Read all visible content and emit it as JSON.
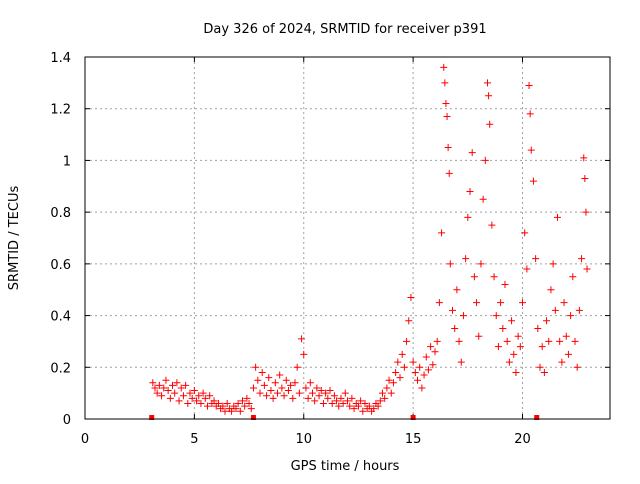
{
  "chart_data": {
    "type": "scatter",
    "title": "Day 326 of 2024, SRMTID for receiver p391",
    "xlabel": "GPS time / hours",
    "ylabel": "SRMTID / TECUs",
    "xlim": [
      0,
      24
    ],
    "ylim": [
      0,
      1.4
    ],
    "xticks": [
      0,
      5,
      10,
      15,
      20
    ],
    "xtick_labels": [
      "0",
      "5",
      "10",
      "15",
      "20"
    ],
    "yticks": [
      0,
      0.2,
      0.4,
      0.6,
      0.8,
      1.0,
      1.2,
      1.4
    ],
    "ytick_labels": [
      "0",
      "0.2",
      "0.4",
      "0.6",
      "0.8",
      "1",
      "1.2",
      "1.4"
    ],
    "grid": true,
    "marker": "+",
    "color": "#ff0000",
    "series": [
      {
        "name": "SRMTID",
        "points": [
          [
            3.1,
            0.14
          ],
          [
            3.2,
            0.12
          ],
          [
            3.3,
            0.1
          ],
          [
            3.4,
            0.13
          ],
          [
            3.5,
            0.09
          ],
          [
            3.6,
            0.12
          ],
          [
            3.7,
            0.15
          ],
          [
            3.8,
            0.11
          ],
          [
            3.9,
            0.08
          ],
          [
            4.0,
            0.13
          ],
          [
            4.1,
            0.1
          ],
          [
            4.2,
            0.14
          ],
          [
            4.3,
            0.07
          ],
          [
            4.4,
            0.12
          ],
          [
            4.5,
            0.09
          ],
          [
            4.6,
            0.13
          ],
          [
            4.7,
            0.06
          ],
          [
            4.8,
            0.1
          ],
          [
            4.9,
            0.08
          ],
          [
            5.0,
            0.11
          ],
          [
            5.1,
            0.07
          ],
          [
            5.2,
            0.09
          ],
          [
            5.3,
            0.06
          ],
          [
            5.4,
            0.1
          ],
          [
            5.5,
            0.08
          ],
          [
            5.6,
            0.05
          ],
          [
            5.7,
            0.09
          ],
          [
            5.8,
            0.06
          ],
          [
            5.9,
            0.07
          ],
          [
            6.0,
            0.05
          ],
          [
            6.1,
            0.06
          ],
          [
            6.2,
            0.04
          ],
          [
            6.3,
            0.05
          ],
          [
            6.4,
            0.03
          ],
          [
            6.5,
            0.06
          ],
          [
            6.6,
            0.04
          ],
          [
            6.7,
            0.03
          ],
          [
            6.8,
            0.05
          ],
          [
            6.9,
            0.04
          ],
          [
            7.0,
            0.06
          ],
          [
            7.1,
            0.03
          ],
          [
            7.2,
            0.07
          ],
          [
            7.3,
            0.05
          ],
          [
            7.4,
            0.08
          ],
          [
            7.5,
            0.06
          ],
          [
            7.6,
            0.04
          ],
          [
            7.7,
            0.12
          ],
          [
            7.8,
            0.2
          ],
          [
            7.9,
            0.15
          ],
          [
            8.0,
            0.1
          ],
          [
            8.1,
            0.18
          ],
          [
            8.2,
            0.13
          ],
          [
            8.3,
            0.09
          ],
          [
            8.4,
            0.16
          ],
          [
            8.5,
            0.11
          ],
          [
            8.6,
            0.08
          ],
          [
            8.7,
            0.14
          ],
          [
            8.8,
            0.1
          ],
          [
            8.9,
            0.17
          ],
          [
            9.0,
            0.12
          ],
          [
            9.1,
            0.09
          ],
          [
            9.2,
            0.15
          ],
          [
            9.3,
            0.11
          ],
          [
            9.4,
            0.13
          ],
          [
            9.5,
            0.08
          ],
          [
            9.6,
            0.14
          ],
          [
            9.7,
            0.2
          ],
          [
            9.8,
            0.1
          ],
          [
            9.9,
            0.31
          ],
          [
            10.0,
            0.25
          ],
          [
            10.1,
            0.12
          ],
          [
            10.2,
            0.08
          ],
          [
            10.3,
            0.14
          ],
          [
            10.4,
            0.1
          ],
          [
            10.5,
            0.07
          ],
          [
            10.6,
            0.12
          ],
          [
            10.7,
            0.09
          ],
          [
            10.8,
            0.11
          ],
          [
            10.9,
            0.06
          ],
          [
            11.0,
            0.1
          ],
          [
            11.1,
            0.08
          ],
          [
            11.2,
            0.11
          ],
          [
            11.3,
            0.06
          ],
          [
            11.4,
            0.09
          ],
          [
            11.5,
            0.07
          ],
          [
            11.6,
            0.05
          ],
          [
            11.7,
            0.08
          ],
          [
            11.8,
            0.06
          ],
          [
            11.9,
            0.1
          ],
          [
            12.0,
            0.07
          ],
          [
            12.1,
            0.05
          ],
          [
            12.2,
            0.08
          ],
          [
            12.3,
            0.04
          ],
          [
            12.4,
            0.06
          ],
          [
            12.5,
            0.05
          ],
          [
            12.6,
            0.07
          ],
          [
            12.7,
            0.03
          ],
          [
            12.8,
            0.06
          ],
          [
            12.9,
            0.04
          ],
          [
            13.0,
            0.05
          ],
          [
            13.1,
            0.03
          ],
          [
            13.2,
            0.04
          ],
          [
            13.3,
            0.06
          ],
          [
            13.4,
            0.05
          ],
          [
            13.5,
            0.07
          ],
          [
            13.6,
            0.1
          ],
          [
            13.7,
            0.08
          ],
          [
            13.8,
            0.12
          ],
          [
            13.9,
            0.15
          ],
          [
            14.0,
            0.1
          ],
          [
            14.1,
            0.14
          ],
          [
            14.2,
            0.18
          ],
          [
            14.3,
            0.22
          ],
          [
            14.4,
            0.16
          ],
          [
            14.5,
            0.25
          ],
          [
            14.6,
            0.2
          ],
          [
            14.7,
            0.3
          ],
          [
            14.8,
            0.38
          ],
          [
            14.9,
            0.47
          ],
          [
            15.0,
            0.22
          ],
          [
            15.1,
            0.18
          ],
          [
            15.2,
            0.15
          ],
          [
            15.3,
            0.2
          ],
          [
            15.4,
            0.12
          ],
          [
            15.5,
            0.17
          ],
          [
            15.6,
            0.24
          ],
          [
            15.7,
            0.19
          ],
          [
            15.8,
            0.28
          ],
          [
            15.9,
            0.21
          ],
          [
            16.0,
            0.26
          ],
          [
            16.1,
            0.3
          ],
          [
            16.2,
            0.45
          ],
          [
            16.3,
            0.72
          ],
          [
            16.4,
            1.36
          ],
          [
            16.45,
            1.3
          ],
          [
            16.5,
            1.22
          ],
          [
            16.55,
            1.17
          ],
          [
            16.6,
            1.05
          ],
          [
            16.65,
            0.95
          ],
          [
            16.7,
            0.6
          ],
          [
            16.8,
            0.42
          ],
          [
            16.9,
            0.35
          ],
          [
            17.0,
            0.5
          ],
          [
            17.1,
            0.3
          ],
          [
            17.2,
            0.22
          ],
          [
            17.3,
            0.4
          ],
          [
            17.4,
            0.62
          ],
          [
            17.5,
            0.78
          ],
          [
            17.6,
            0.88
          ],
          [
            17.7,
            1.03
          ],
          [
            17.8,
            0.55
          ],
          [
            17.9,
            0.45
          ],
          [
            18.0,
            0.32
          ],
          [
            18.1,
            0.6
          ],
          [
            18.2,
            0.85
          ],
          [
            18.3,
            1.0
          ],
          [
            18.4,
            1.3
          ],
          [
            18.45,
            1.25
          ],
          [
            18.5,
            1.14
          ],
          [
            18.6,
            0.75
          ],
          [
            18.7,
            0.55
          ],
          [
            18.8,
            0.4
          ],
          [
            18.9,
            0.28
          ],
          [
            19.0,
            0.45
          ],
          [
            19.1,
            0.35
          ],
          [
            19.2,
            0.52
          ],
          [
            19.3,
            0.3
          ],
          [
            19.4,
            0.22
          ],
          [
            19.5,
            0.38
          ],
          [
            19.6,
            0.25
          ],
          [
            19.7,
            0.18
          ],
          [
            19.8,
            0.32
          ],
          [
            19.9,
            0.28
          ],
          [
            20.0,
            0.45
          ],
          [
            20.1,
            0.72
          ],
          [
            20.2,
            0.58
          ],
          [
            20.3,
            1.29
          ],
          [
            20.35,
            1.18
          ],
          [
            20.4,
            1.04
          ],
          [
            20.5,
            0.92
          ],
          [
            20.6,
            0.62
          ],
          [
            20.7,
            0.35
          ],
          [
            20.8,
            0.2
          ],
          [
            20.9,
            0.28
          ],
          [
            21.0,
            0.18
          ],
          [
            21.1,
            0.38
          ],
          [
            21.2,
            0.3
          ],
          [
            21.3,
            0.5
          ],
          [
            21.4,
            0.6
          ],
          [
            21.5,
            0.42
          ],
          [
            21.6,
            0.78
          ],
          [
            21.7,
            0.3
          ],
          [
            21.8,
            0.22
          ],
          [
            21.9,
            0.45
          ],
          [
            22.0,
            0.32
          ],
          [
            22.1,
            0.25
          ],
          [
            22.2,
            0.4
          ],
          [
            22.3,
            0.55
          ],
          [
            22.4,
            0.3
          ],
          [
            22.5,
            0.2
          ],
          [
            22.6,
            0.42
          ],
          [
            22.7,
            0.62
          ],
          [
            22.8,
            1.01
          ],
          [
            22.85,
            0.93
          ],
          [
            22.9,
            0.8
          ],
          [
            22.95,
            0.58
          ]
        ]
      }
    ],
    "baseline_markers_x": [
      3.05,
      7.7,
      15.0,
      20.65
    ]
  }
}
